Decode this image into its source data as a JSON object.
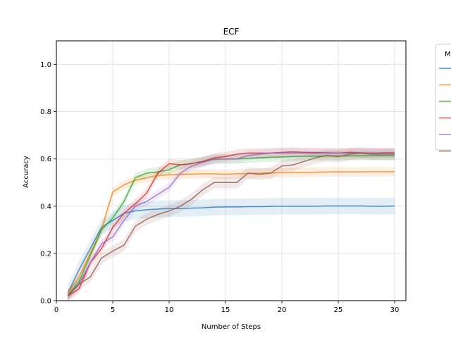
{
  "chart_data": {
    "type": "line",
    "title": "ECF",
    "xlabel": "Number of Steps",
    "ylabel": "Accuracy",
    "xlim": [
      0,
      31
    ],
    "ylim": [
      0.0,
      1.1
    ],
    "xticks": [
      0,
      5,
      10,
      15,
      20,
      25,
      30
    ],
    "yticks": [
      0.0,
      0.2,
      0.4,
      0.6,
      0.8,
      1.0
    ],
    "xtick_labels": [
      "0",
      "5",
      "10",
      "15",
      "20",
      "25",
      "30"
    ],
    "ytick_labels": [
      "0.0",
      "0.2",
      "0.4",
      "0.6",
      "0.8",
      "1.0"
    ],
    "grid": true,
    "legend": {
      "placement": "outside-right",
      "title": "M"
    },
    "x": [
      1,
      2,
      3,
      4,
      5,
      6,
      7,
      8,
      9,
      10,
      11,
      12,
      13,
      14,
      15,
      16,
      17,
      18,
      19,
      20,
      21,
      22,
      23,
      24,
      25,
      26,
      27,
      28,
      29,
      30
    ],
    "series": [
      {
        "color": "#1f77b4",
        "values": [
          0.03,
          0.13,
          0.22,
          0.31,
          0.34,
          0.37,
          0.38,
          0.385,
          0.388,
          0.39,
          0.39,
          0.392,
          0.393,
          0.396,
          0.397,
          0.397,
          0.398,
          0.398,
          0.399,
          0.4,
          0.4,
          0.4,
          0.4,
          0.401,
          0.401,
          0.401,
          0.401,
          0.4,
          0.4,
          0.401
        ],
        "band": 0.035
      },
      {
        "color": "#ff7f0e",
        "values": [
          0.03,
          0.1,
          0.2,
          0.3,
          0.46,
          0.49,
          0.51,
          0.52,
          0.53,
          0.533,
          0.535,
          0.536,
          0.537,
          0.537,
          0.535,
          0.537,
          0.538,
          0.54,
          0.541,
          0.542,
          0.543,
          0.543,
          0.544,
          0.545,
          0.545,
          0.545,
          0.545,
          0.546,
          0.546,
          0.546
        ],
        "band": 0.02
      },
      {
        "color": "#2ca02c",
        "values": [
          0.02,
          0.08,
          0.19,
          0.3,
          0.35,
          0.42,
          0.52,
          0.54,
          0.545,
          0.555,
          0.575,
          0.58,
          0.59,
          0.598,
          0.6,
          0.6,
          0.603,
          0.605,
          0.607,
          0.608,
          0.61,
          0.612,
          0.612,
          0.613,
          0.613,
          0.613,
          0.614,
          0.614,
          0.614,
          0.614
        ],
        "band": 0.02
      },
      {
        "color": "#d62728",
        "values": [
          0.02,
          0.05,
          0.16,
          0.22,
          0.31,
          0.37,
          0.41,
          0.455,
          0.54,
          0.58,
          0.575,
          0.58,
          0.59,
          0.605,
          0.61,
          0.62,
          0.625,
          0.625,
          0.625,
          0.628,
          0.63,
          0.628,
          0.627,
          0.626,
          0.625,
          0.628,
          0.626,
          0.625,
          0.626,
          0.626
        ],
        "band": 0.02
      },
      {
        "color": "#9467bd",
        "values": [
          0.02,
          0.07,
          0.16,
          0.24,
          0.27,
          0.34,
          0.4,
          0.42,
          0.45,
          0.48,
          0.54,
          0.57,
          0.585,
          0.6,
          0.6,
          0.6,
          0.615,
          0.62,
          0.625,
          0.625,
          0.625,
          0.625,
          0.625,
          0.625,
          0.625,
          0.625,
          0.625,
          0.625,
          0.625,
          0.625
        ],
        "band": 0.02
      },
      {
        "color": "#8c564b",
        "values": [
          0.02,
          0.07,
          0.1,
          0.18,
          0.21,
          0.235,
          0.315,
          0.345,
          0.365,
          0.38,
          0.4,
          0.43,
          0.47,
          0.5,
          0.5,
          0.5,
          0.54,
          0.535,
          0.54,
          0.57,
          0.575,
          0.59,
          0.605,
          0.615,
          0.61,
          0.62,
          0.625,
          0.62,
          0.62,
          0.62
        ],
        "band": 0.025
      }
    ]
  }
}
